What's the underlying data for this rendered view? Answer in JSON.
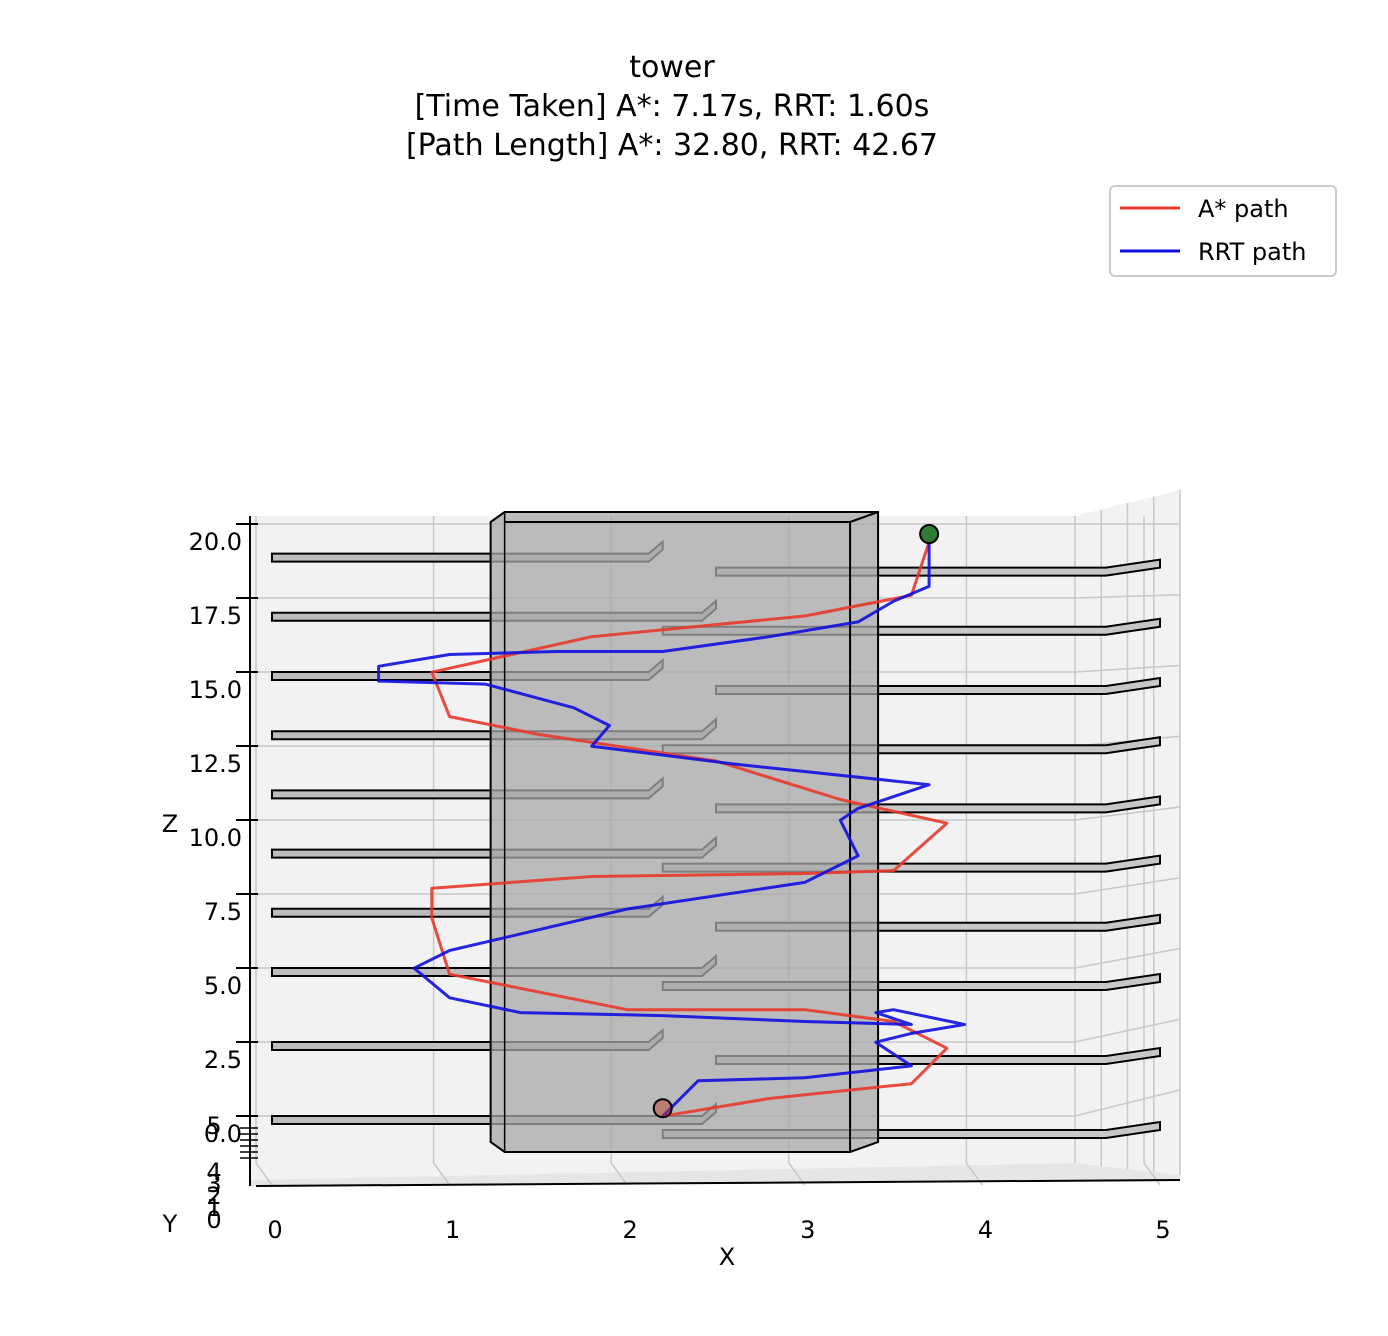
{
  "chart_data": {
    "type": "line",
    "projection": "3d",
    "title": "tower",
    "subtitle_lines": [
      "[Time Taken] A*: 7.17s, RRT: 1.60s",
      "[Path Length] A*: 32.80, RRT: 42.67"
    ],
    "xlabel": "X",
    "ylabel": "Y",
    "zlabel": "Z",
    "xlim": [
      0,
      5
    ],
    "ylim": [
      0,
      5
    ],
    "zlim": [
      0,
      20
    ],
    "x_ticks": [
      "0",
      "1",
      "2",
      "3",
      "4",
      "5"
    ],
    "y_ticks": [
      "0",
      "1",
      "2",
      "3",
      "4",
      "5"
    ],
    "z_ticks": [
      "0.0",
      "2.5",
      "5.0",
      "7.5",
      "10.0",
      "12.5",
      "15.0",
      "17.5",
      "20.0"
    ],
    "grid": true,
    "legend_position": "top-right",
    "colors": {
      "astar": "#e8382a",
      "rrt": "#1010e0",
      "start": "#c0392b",
      "goal": "#2e7d32"
    },
    "series": [
      {
        "name": "A* path",
        "x": [
          2.2,
          2.8,
          3.6,
          3.8,
          3.5,
          3.0,
          2.0,
          1.0,
          0.9,
          0.9,
          1.8,
          3.0,
          3.5,
          3.8,
          3.2,
          2.5,
          1.5,
          1.0,
          0.9,
          1.8,
          3.0,
          3.6,
          3.7
        ],
        "z": [
          0.6,
          1.2,
          1.7,
          2.9,
          3.8,
          4.2,
          4.2,
          5.4,
          7.3,
          8.3,
          8.7,
          8.8,
          8.9,
          10.5,
          11.3,
          12.6,
          13.5,
          14.1,
          15.6,
          16.8,
          17.5,
          18.2,
          20.0
        ]
      },
      {
        "name": "RRT path",
        "x": [
          2.2,
          2.4,
          3.0,
          3.6,
          3.4,
          3.6,
          3.9,
          3.5,
          3.4,
          3.6,
          3.0,
          2.2,
          1.4,
          1.0,
          0.8,
          1.0,
          2.0,
          3.0,
          3.3,
          3.2,
          3.3,
          3.5,
          3.7,
          2.6,
          1.8,
          1.9,
          1.7,
          1.2,
          0.6,
          0.6,
          1.0,
          1.6,
          2.2,
          2.8,
          3.3,
          3.5,
          3.7,
          3.7
        ],
        "z": [
          0.6,
          1.8,
          1.9,
          2.3,
          3.1,
          3.4,
          3.7,
          4.2,
          4.1,
          3.7,
          3.8,
          4.0,
          4.1,
          4.6,
          5.6,
          6.2,
          7.6,
          8.5,
          9.4,
          10.6,
          11.0,
          11.4,
          11.8,
          12.5,
          13.1,
          13.8,
          14.4,
          15.2,
          15.3,
          15.8,
          16.2,
          16.3,
          16.3,
          16.8,
          17.3,
          18.0,
          18.5,
          20.0
        ]
      }
    ],
    "markers": [
      {
        "name": "start",
        "x": 2.2,
        "z": 0.6
      },
      {
        "name": "goal",
        "x": 3.7,
        "z": 20.0
      }
    ],
    "obstacles": {
      "tower": {
        "x": [
          1.4,
          3.3
        ],
        "z": [
          0,
          20
        ]
      },
      "floor_slabs_z": [
        0,
        2.5,
        5.0,
        7.0,
        9.0,
        11.0,
        13.0,
        15.0,
        17.0,
        19.0
      ]
    }
  }
}
